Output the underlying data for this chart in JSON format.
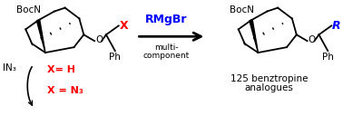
{
  "background_color": "#ffffff",
  "red_color": "#ff0000",
  "blue_color": "#0000ff",
  "black_color": "#000000",
  "rmgbr_text": "RMgBr",
  "multi_line1": "multi-",
  "multi_line2": "component",
  "x_eq_h": "X= H",
  "x_eq_n3": "X = N₃",
  "in3_text": "IN₃",
  "analogues_line1": "125 benztropine",
  "analogues_line2": "analogues",
  "boc_left": "BocN",
  "boc_right": "BocN",
  "o_left": "O",
  "o_right": "O",
  "ph_left": "Ph",
  "ph_right": "Ph",
  "x_label": "X",
  "r_label": "R",
  "fig_width": 3.78,
  "fig_height": 1.28,
  "dpi": 100
}
